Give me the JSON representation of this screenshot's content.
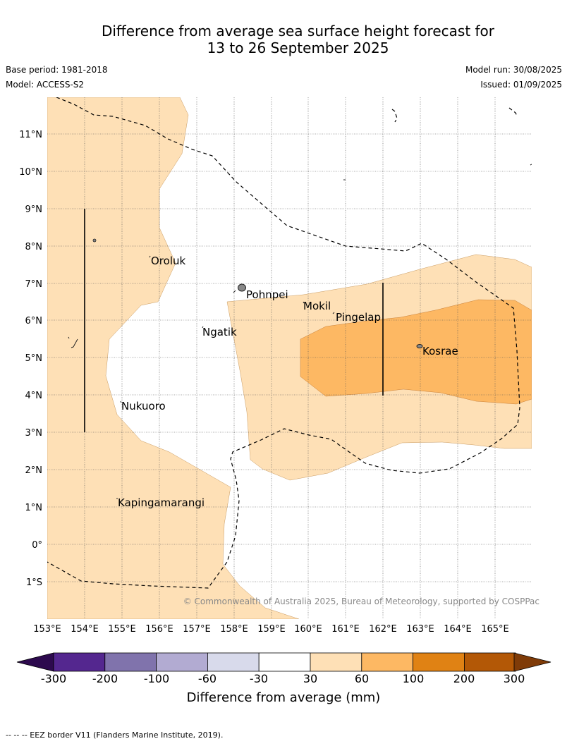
{
  "title_line1": "Difference from average sea surface height forecast for",
  "title_line2": "13 to 26 September 2025",
  "base_period": "Base period: 1981-2018",
  "model": "Model: ACCESS-S2",
  "model_run": "Model run: 30/08/2025",
  "issued": "Issued: 01/09/2025",
  "lat_labels": [
    "11°N",
    "10°N",
    "9°N",
    "8°N",
    "7°N",
    "6°N",
    "5°N",
    "4°N",
    "3°N",
    "2°N",
    "1°N",
    "0°",
    "1°S"
  ],
  "lon_labels": [
    "153°E",
    "154°E",
    "155°E",
    "156°E",
    "157°E",
    "158°E",
    "159°E",
    "160°E",
    "161°E",
    "162°E",
    "163°E",
    "164°E",
    "165°E"
  ],
  "places": {
    "oroluk": "Oroluk",
    "pohnpei": "Pohnpei",
    "mokil": "Mokil",
    "pingelap": "Pingelap",
    "kosrae": "Kosrae",
    "ngatik": "Ngatik",
    "nukuoro": "Nukuoro",
    "kapingamarangi": "Kapingamarangi"
  },
  "copyright": "© Commonwealth of Australia 2025, Bureau of Meteorology, supported by COSPPac",
  "colorbar": {
    "ticks": [
      "-300",
      "-200",
      "-100",
      "-60",
      "-30",
      "30",
      "60",
      "100",
      "200",
      "300"
    ],
    "colors": [
      "#2d0a4e",
      "#54278f",
      "#8073ac",
      "#b2abd2",
      "#d8daeb",
      "#ffffff",
      "#fee0b6",
      "#fdb863",
      "#e08214",
      "#b35806",
      "#7f3b08"
    ],
    "label": "Difference from average (mm)"
  },
  "legend_note": "--  --  -- EEZ border V11 (Flanders Marine Institute, 2019)."
}
